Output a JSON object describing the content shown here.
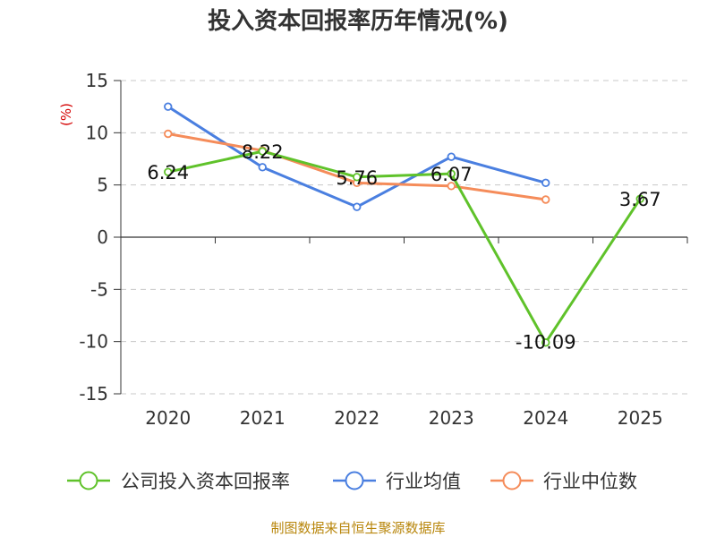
{
  "chart_data": {
    "type": "line",
    "title": "投入资本回报率历年情况(%)",
    "ylabel": "(%)",
    "xlabel": "",
    "categories": [
      "2020",
      "2021",
      "2022",
      "2023",
      "2024",
      "2025"
    ],
    "ylim": [
      -15,
      15
    ],
    "yticks": [
      15,
      10,
      5,
      0,
      -5,
      -10,
      -15
    ],
    "grid": true,
    "legend_position": "bottom",
    "series": [
      {
        "name": "公司投入资本回报率",
        "color": "#5fc22a",
        "values": [
          6.24,
          8.22,
          5.76,
          6.07,
          -10.09,
          3.67
        ],
        "labels": [
          "6.24",
          "8.22",
          "5.76",
          "6.07",
          "-10.09",
          "3.67"
        ]
      },
      {
        "name": "行业均值",
        "color": "#4a7fe0",
        "values": [
          12.5,
          6.7,
          2.9,
          7.7,
          5.2,
          null
        ]
      },
      {
        "name": "行业中位数",
        "color": "#f58c5a",
        "values": [
          9.9,
          8.3,
          5.2,
          4.9,
          3.6,
          null
        ]
      }
    ]
  },
  "footer": {
    "source": "制图数据来自恒生聚源数据库"
  }
}
